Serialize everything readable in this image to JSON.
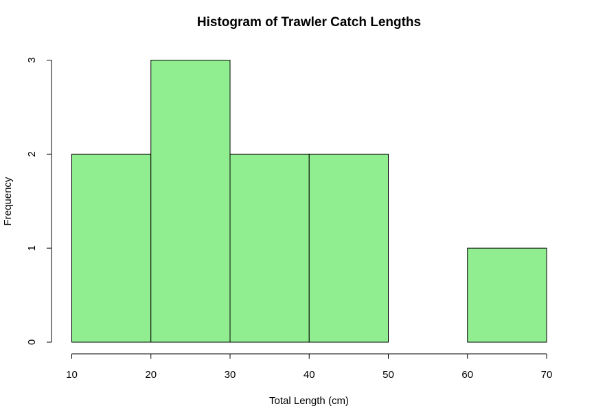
{
  "chart_data": {
    "type": "bar",
    "subtype": "histogram",
    "title": "Histogram of Trawler Catch Lengths",
    "xlabel": "Total Length (cm)",
    "ylabel": "Frequency",
    "bins": [
      {
        "from": 10,
        "to": 20,
        "count": 2
      },
      {
        "from": 20,
        "to": 30,
        "count": 3
      },
      {
        "from": 30,
        "to": 40,
        "count": 2
      },
      {
        "from": 40,
        "to": 50,
        "count": 2
      },
      {
        "from": 50,
        "to": 60,
        "count": 0
      },
      {
        "from": 60,
        "to": 70,
        "count": 1
      }
    ],
    "xlim": [
      10,
      70
    ],
    "ylim": [
      0,
      3
    ],
    "x_ticks": [
      10,
      20,
      30,
      40,
      50,
      60,
      70
    ],
    "y_ticks": [
      0,
      1,
      2,
      3
    ],
    "grid": false,
    "bar_color": "#90ee90",
    "edge_color": "#000000"
  }
}
